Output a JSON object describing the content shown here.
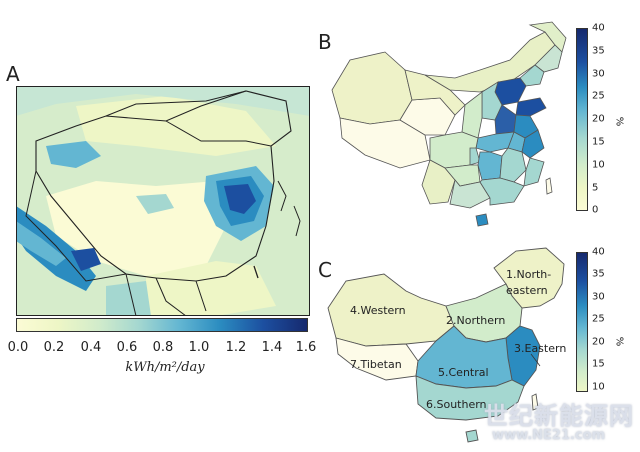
{
  "panel_a": {
    "letter": "A",
    "colorbar_ticks": [
      "0.0",
      "0.2",
      "0.4",
      "0.6",
      "0.8",
      "1.0",
      "1.2",
      "1.4",
      "1.6"
    ],
    "unit_label": "kWh/m²/day",
    "colors": [
      "#fbfbd5",
      "#eef6c6",
      "#d2eccb",
      "#a4d7d0",
      "#63b6d2",
      "#2b8cc0",
      "#1c4fa0",
      "#16296e"
    ]
  },
  "panel_b": {
    "letter": "B",
    "colorbar_ticks": [
      "40",
      "35",
      "30",
      "25",
      "20",
      "15",
      "10",
      "5",
      "0"
    ],
    "percent_label": "%"
  },
  "panel_c": {
    "letter": "C",
    "colorbar_ticks": [
      "40",
      "35",
      "30",
      "25",
      "20",
      "15",
      "10"
    ],
    "percent_label": "%",
    "regions": {
      "northeastern_line1": "1.North-",
      "northeastern_line2": "eastern",
      "northern": "2.Northern",
      "eastern": "3.Eastern",
      "western": "4.Western",
      "central": "5.Central",
      "southern": "6.Southern",
      "tibetan": "7.Tibetan"
    }
  },
  "watermark": {
    "text": "世纪新能源网",
    "url": "www.NE21.com"
  }
}
